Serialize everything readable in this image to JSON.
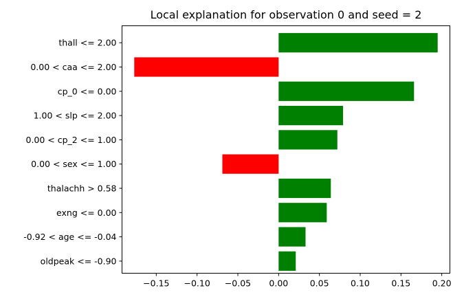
{
  "chart_data": {
    "type": "bar",
    "orientation": "horizontal",
    "title": "Local explanation for observation 0 and seed = 2",
    "xlabel": "",
    "ylabel": "",
    "categories": [
      "thall <= 2.00",
      "0.00 < caa <= 2.00",
      "cp_0 <= 0.00",
      "1.00 < slp <= 2.00",
      "0.00 < cp_2 <= 1.00",
      "0.00 < sex <= 1.00",
      "thalachh > 0.58",
      "exng <= 0.00",
      "-0.92 < age <= -0.04",
      "oldpeak <= -0.90"
    ],
    "values": [
      0.195,
      -0.177,
      0.166,
      0.079,
      0.072,
      -0.069,
      0.064,
      0.059,
      0.033,
      0.021
    ],
    "xlim": [
      -0.192,
      0.21
    ],
    "xticks": [
      -0.15,
      -0.1,
      -0.05,
      0.0,
      0.05,
      0.1,
      0.15,
      0.2
    ],
    "xtick_labels": [
      "−0.15",
      "−0.10",
      "−0.05",
      "0.00",
      "0.05",
      "0.10",
      "0.15",
      "0.20"
    ],
    "colors": {
      "positive": "#008000",
      "negative": "#ff0000"
    },
    "grid": false,
    "legend": "none"
  }
}
